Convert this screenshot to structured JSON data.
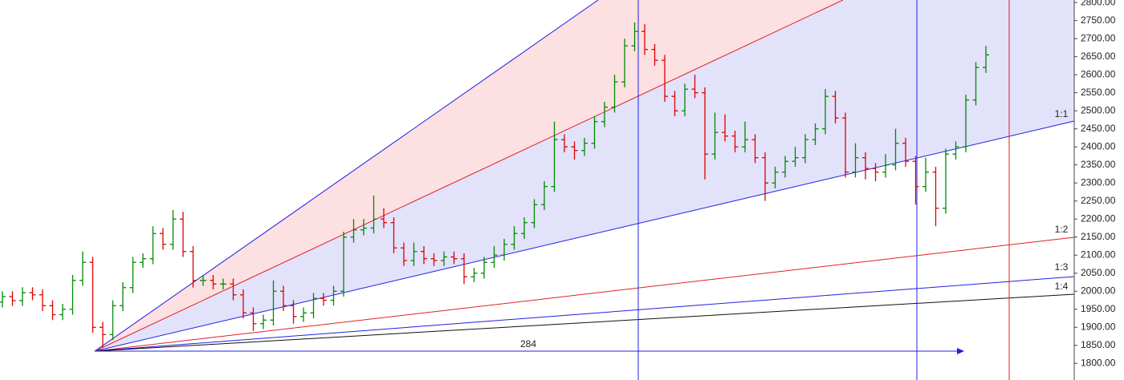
{
  "chart_data": {
    "type": "ohlc",
    "up_color": "#008a00",
    "down_color": "#e00000",
    "open": [
      1970,
      1985,
      1974,
      1996,
      1990,
      1960,
      1935,
      1950,
      2030,
      2080,
      1900,
      1880,
      1960,
      2010,
      2080,
      2090,
      2160,
      2130,
      2200,
      2110,
      2030,
      2030,
      2020,
      2020,
      1990,
      1940,
      1910,
      1920,
      2000,
      1960,
      1930,
      1940,
      1980,
      1975,
      2000,
      2150,
      2170,
      2175,
      2200,
      2190,
      2120,
      2085,
      2110,
      2090,
      2085,
      2095,
      2090,
      2040,
      2050,
      2080,
      2100,
      2130,
      2160,
      2190,
      2240,
      2290,
      2420,
      2400,
      2390,
      2410,
      2470,
      2510,
      2580,
      2680,
      2720,
      2670,
      2640,
      2540,
      2500,
      2560,
      2550,
      2380,
      2440,
      2430,
      2400,
      2420,
      2370,
      2300,
      2330,
      2360,
      2370,
      2420,
      2450,
      2540,
      2480,
      2330,
      2370,
      2340,
      2330,
      2350,
      2410,
      2360,
      2290,
      2330,
      2230,
      2380,
      2400,
      2530,
      2620
    ],
    "high": [
      2000,
      2000,
      2011,
      2011,
      2005,
      1975,
      1965,
      2045,
      2110,
      2095,
      1915,
      1975,
      2025,
      2095,
      2105,
      2180,
      2175,
      2225,
      2220,
      2125,
      2045,
      2045,
      2035,
      2035,
      2005,
      1955,
      1935,
      2030,
      2015,
      1975,
      1955,
      1995,
      1995,
      2015,
      2165,
      2200,
      2200,
      2265,
      2230,
      2205,
      2135,
      2135,
      2125,
      2105,
      2110,
      2110,
      2105,
      2065,
      2095,
      2125,
      2145,
      2180,
      2205,
      2255,
      2305,
      2470,
      2435,
      2415,
      2425,
      2485,
      2525,
      2600,
      2700,
      2745,
      2740,
      2685,
      2655,
      2555,
      2575,
      2600,
      2565,
      2495,
      2490,
      2445,
      2470,
      2435,
      2385,
      2345,
      2375,
      2400,
      2435,
      2465,
      2560,
      2555,
      2495,
      2410,
      2385,
      2355,
      2380,
      2450,
      2425,
      2375,
      2370,
      2345,
      2395,
      2415,
      2545,
      2635,
      2680
    ],
    "low": [
      1955,
      1959,
      1959,
      1975,
      1945,
      1920,
      1920,
      1935,
      2015,
      1885,
      1845,
      1865,
      1945,
      1995,
      2065,
      2075,
      2115,
      2115,
      2095,
      2010,
      2015,
      2005,
      2005,
      1975,
      1925,
      1890,
      1895,
      1905,
      1945,
      1910,
      1915,
      1925,
      1960,
      1960,
      1985,
      2135,
      2155,
      2160,
      2175,
      2105,
      2070,
      2070,
      2075,
      2070,
      2070,
      2075,
      2020,
      2025,
      2035,
      2065,
      2085,
      2115,
      2145,
      2175,
      2225,
      2275,
      2385,
      2365,
      2375,
      2395,
      2455,
      2495,
      2565,
      2665,
      2655,
      2625,
      2525,
      2485,
      2485,
      2535,
      2310,
      2365,
      2415,
      2385,
      2385,
      2355,
      2250,
      2285,
      2315,
      2345,
      2355,
      2405,
      2435,
      2465,
      2315,
      2315,
      2310,
      2305,
      2315,
      2335,
      2345,
      2240,
      2275,
      2180,
      2215,
      2365,
      2385,
      2515,
      2605
    ],
    "close": [
      1985,
      1974,
      1996,
      1990,
      1960,
      1935,
      1950,
      2030,
      2080,
      1900,
      1880,
      1960,
      2010,
      2080,
      2090,
      2160,
      2130,
      2200,
      2110,
      2030,
      2030,
      2020,
      2020,
      1990,
      1940,
      1910,
      1920,
      2000,
      1960,
      1930,
      1940,
      1980,
      1975,
      2000,
      2150,
      2170,
      2175,
      2200,
      2190,
      2120,
      2085,
      2110,
      2090,
      2085,
      2095,
      2090,
      2040,
      2050,
      2080,
      2100,
      2130,
      2160,
      2190,
      2240,
      2290,
      2420,
      2400,
      2390,
      2410,
      2470,
      2510,
      2580,
      2680,
      2720,
      2670,
      2640,
      2540,
      2500,
      2560,
      2550,
      2380,
      2440,
      2430,
      2400,
      2420,
      2370,
      2300,
      2330,
      2360,
      2370,
      2420,
      2450,
      2540,
      2480,
      2330,
      2370,
      2340,
      2330,
      2350,
      2410,
      2360,
      2290,
      2330,
      2230,
      2380,
      2400,
      2530,
      2620,
      2655
    ],
    "ylim": [
      1754,
      2807
    ],
    "yticks": [
      {
        "value": 1800,
        "label": "1800.00"
      },
      {
        "value": 1850,
        "label": "1850.00"
      },
      {
        "value": 1900,
        "label": "1900.00"
      },
      {
        "value": 1950,
        "label": "1950.00"
      },
      {
        "value": 2000,
        "label": "2000.00"
      },
      {
        "value": 2050,
        "label": "2050.00"
      },
      {
        "value": 2100,
        "label": "2100.00"
      },
      {
        "value": 2150,
        "label": "2150.00"
      },
      {
        "value": 2200,
        "label": "2200.00"
      },
      {
        "value": 2250,
        "label": "2250.00"
      },
      {
        "value": 2300,
        "label": "2300.00"
      },
      {
        "value": 2350,
        "label": "2350.00"
      },
      {
        "value": 2400,
        "label": "2400.00"
      },
      {
        "value": 2450,
        "label": "2450.00"
      },
      {
        "value": 2500,
        "label": "2500.00"
      },
      {
        "value": 2550,
        "label": "2550.00"
      },
      {
        "value": 2600,
        "label": "2600.00"
      },
      {
        "value": 2650,
        "label": "2650.00"
      },
      {
        "value": 2700,
        "label": "2700.00"
      },
      {
        "value": 2750,
        "label": "2750.00"
      },
      {
        "value": 2800,
        "label": "2800.00"
      }
    ],
    "fan_labels": [
      "1:1",
      "1:2",
      "1:3",
      "1:4"
    ],
    "range_label": 284
  }
}
